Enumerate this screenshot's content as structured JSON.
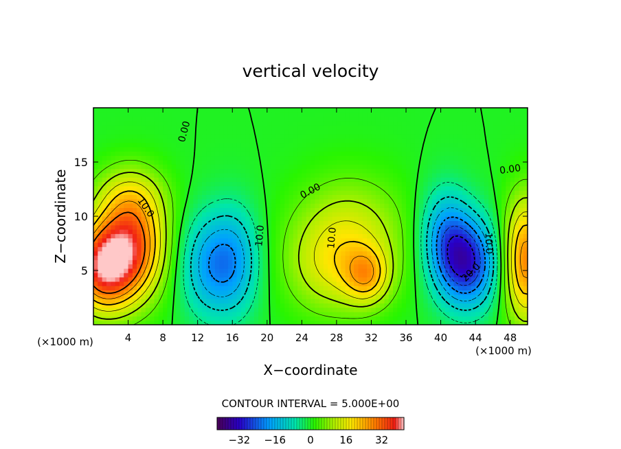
{
  "chart_data": {
    "type": "heatmap",
    "title": "vertical velocity",
    "xlabel": "X−coordinate",
    "ylabel": "Z−coordinate",
    "x_unit": "(×1000 m)",
    "x_unit_right": "(×1000 m)",
    "xlim": [
      0,
      50
    ],
    "ylim": [
      0,
      20
    ],
    "x_ticks": [
      4,
      8,
      12,
      16,
      20,
      24,
      28,
      32,
      36,
      40,
      44,
      48
    ],
    "y_ticks": [
      5,
      10,
      15
    ],
    "contour_interval_text": "CONTOUR INTERVAL = 5.000E+00",
    "colorbar": {
      "min": -42,
      "max": 42,
      "tick_values": [
        -32,
        -16,
        0,
        16,
        32
      ],
      "tick_labels": [
        "−32",
        "−16",
        "0",
        "16",
        "32"
      ]
    },
    "contour_labels": [
      {
        "text": "0.00",
        "x": 10.5,
        "z": 17.8,
        "rot": -75
      },
      {
        "text": "10.0",
        "x": 6.0,
        "z": 10.8,
        "rot": 55
      },
      {
        "text": "10.0",
        "x": 19.2,
        "z": 8.2,
        "rot": -85
      },
      {
        "text": "0.00",
        "x": 25.0,
        "z": 12.3,
        "rot": -28
      },
      {
        "text": "10.0",
        "x": 27.5,
        "z": 8.0,
        "rot": -85
      },
      {
        "text": "10.0",
        "x": 45.5,
        "z": 7.5,
        "rot": 88
      },
      {
        "text": "20.0",
        "x": 43.5,
        "z": 4.8,
        "rot": -45
      },
      {
        "text": "0.00",
        "x": 48.0,
        "z": 14.3,
        "rot": -8
      }
    ],
    "extrema": [
      {
        "x": 1.0,
        "z": 5.3,
        "w": 34,
        "sx": 2.5,
        "sz": 2.8
      },
      {
        "x": 4.5,
        "z": 7.5,
        "w": 30,
        "sx": 2.7,
        "sz": 3.5
      },
      {
        "x": 4.0,
        "z": 12.0,
        "w": 8,
        "sx": 3.0,
        "sz": 2.0
      },
      {
        "x": 13.5,
        "z": 5.5,
        "w": -17,
        "sx": 2.4,
        "sz": 3.3
      },
      {
        "x": 16.5,
        "z": 6.0,
        "w": -12,
        "sx": 2.0,
        "sz": 3.5
      },
      {
        "x": 29.5,
        "z": 8.0,
        "w": 14,
        "sx": 4.5,
        "sz": 3.8
      },
      {
        "x": 31.5,
        "z": 4.5,
        "w": 16,
        "sx": 1.8,
        "sz": 1.8
      },
      {
        "x": 27.0,
        "z": 5.0,
        "w": 8,
        "sx": 3.5,
        "sz": 3.0
      },
      {
        "x": 43.0,
        "z": 5.7,
        "w": -30,
        "sx": 2.4,
        "sz": 2.9
      },
      {
        "x": 40.5,
        "z": 8.5,
        "w": -15,
        "sx": 2.0,
        "sz": 3.0
      },
      {
        "x": 49.8,
        "z": 6.0,
        "w": 28,
        "sx": 1.8,
        "sz": 4.0
      }
    ]
  }
}
